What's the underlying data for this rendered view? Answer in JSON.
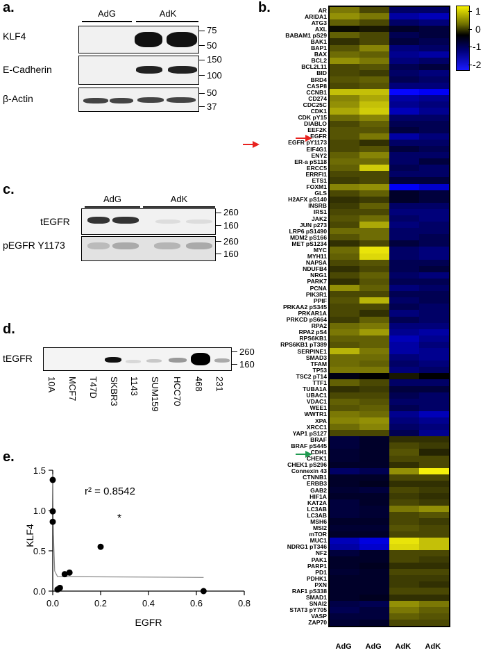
{
  "panels": {
    "a": {
      "label": "a.",
      "groups": [
        "AdG",
        "AdK"
      ],
      "rows": [
        {
          "name": "KLF4",
          "mw": [
            "75",
            "50"
          ]
        },
        {
          "name": "E-Cadherin",
          "mw": [
            "150",
            "100"
          ]
        },
        {
          "name": "β-Actin",
          "mw": [
            "50",
            "37"
          ]
        }
      ]
    },
    "b": {
      "label": "b.",
      "colorbar": [
        "1",
        "0",
        "-1",
        "-2"
      ],
      "columns": [
        "AdG",
        "AdG",
        "AdK",
        "AdK"
      ],
      "genes": [
        "AR",
        "ARIDA1",
        "ATG3",
        "AXL",
        "BABAM1 pS29",
        "BAK1",
        "BAP1",
        "BAX",
        "BCL2",
        "BCL2L11",
        "BID",
        "BRD4",
        "CASP8",
        "CCNB1",
        "CD274",
        "CDC25C",
        "CDK1",
        "CDK pY15",
        "DIABLO",
        "EEF2K",
        "EGFR",
        "EGFR pY1173",
        "EIF4G1",
        "ENY2",
        "ER-a pS118",
        "ERCC5",
        "ERRFI1",
        "ETS1",
        "FOXM1",
        "GLS",
        "H2AFX pS140",
        "INSRB",
        "IRS1",
        "JAK2",
        "JUN p273",
        "LRP6 pS1490",
        "MDM2 pS166",
        "MET pS1234",
        "MYC",
        "MYH11",
        "NAPSA",
        "NDUFB4",
        "NRG1",
        "PARK7",
        "PCNA",
        "PIK3R1",
        "PPIF",
        "PRKAA2 pS345",
        "PRKAR1A",
        "PRKCD pS664",
        "RPA2",
        "RPA2 pS4",
        "RPS6KB1",
        "RPS6KB1 pT389",
        "SERPINE1",
        "SMAD3",
        "TFAM",
        "TP53",
        "TSC2 pT14",
        "TTF1",
        "TUBA1A",
        "UBAC1",
        "VDAC1",
        "WEE1",
        "WWTR1",
        "XPA",
        "XRCC1",
        "YAP1 pS127",
        "BRAF",
        "BRAF pS445",
        "CDH1",
        "CHEK1",
        "CHEK1 pS296",
        "Connexin 43",
        "CTNNB1",
        "ERBB3",
        "GAB2",
        "HIF1A",
        "KAT2A",
        "LC3AB",
        "LC3AB",
        "MSH6",
        "MSI2",
        "mTOR",
        "MUC1",
        "NDRG1 pT346",
        "NF2",
        "PAK1",
        "PARP1",
        "PD1",
        "PDHK1",
        "PXN",
        "RAF1 pS338",
        "SMAD1",
        "SNAI2",
        "STAT3 pY705",
        "VASP",
        "ZAP70"
      ],
      "values": [
        [
          0.5,
          0.3,
          -0.5,
          -0.5
        ],
        [
          0.6,
          0.5,
          -0.8,
          -0.9
        ],
        [
          0.4,
          0.3,
          -0.5,
          -0.6
        ],
        [
          0.05,
          0.1,
          -0.2,
          -0.3
        ],
        [
          0.4,
          0.3,
          -0.4,
          -0.3
        ],
        [
          0.2,
          0.3,
          -0.3,
          -0.4
        ],
        [
          0.35,
          0.55,
          -0.6,
          -0.5
        ],
        [
          0.45,
          0.4,
          -0.7,
          -0.8
        ],
        [
          0.6,
          0.5,
          -0.6,
          -0.5
        ],
        [
          0.3,
          0.35,
          -0.4,
          -0.3
        ],
        [
          0.3,
          0.25,
          -0.5,
          -0.6
        ],
        [
          0.35,
          0.4,
          -0.4,
          -0.5
        ],
        [
          0.3,
          0.35,
          -0.6,
          -0.6
        ],
        [
          0.8,
          0.8,
          -1.6,
          -1.2
        ],
        [
          0.55,
          0.7,
          -0.8,
          -0.7
        ],
        [
          0.6,
          0.8,
          -0.7,
          -0.6
        ],
        [
          0.7,
          0.85,
          -0.9,
          -0.7
        ],
        [
          0.45,
          0.55,
          -0.5,
          -0.5
        ],
        [
          0.3,
          0.4,
          -0.4,
          -0.4
        ],
        [
          0.35,
          0.35,
          -0.3,
          -0.4
        ],
        [
          0.35,
          0.5,
          -0.8,
          -0.6
        ],
        [
          0.3,
          0.2,
          -0.5,
          -0.5
        ],
        [
          0.3,
          0.35,
          -0.3,
          -0.4
        ],
        [
          0.4,
          0.55,
          -0.5,
          -0.5
        ],
        [
          0.45,
          0.45,
          -0.5,
          -0.3
        ],
        [
          0.4,
          0.85,
          -0.4,
          -0.5
        ],
        [
          0.3,
          0.3,
          -0.5,
          -0.5
        ],
        [
          0.25,
          0.3,
          -0.3,
          -0.3
        ],
        [
          0.55,
          0.6,
          -1.2,
          -1.0
        ],
        [
          0.3,
          0.4,
          -0.2,
          -0.3
        ],
        [
          0.2,
          0.25,
          -0.2,
          -0.3
        ],
        [
          0.25,
          0.4,
          -0.5,
          -0.5
        ],
        [
          0.3,
          0.3,
          -0.6,
          -0.6
        ],
        [
          0.35,
          0.45,
          -0.5,
          -0.6
        ],
        [
          0.3,
          0.7,
          -0.6,
          -0.5
        ],
        [
          0.45,
          0.45,
          -0.5,
          -0.5
        ],
        [
          0.35,
          0.45,
          -0.5,
          -0.4
        ],
        [
          0.2,
          0.3,
          -0.3,
          -0.4
        ],
        [
          0.45,
          0.95,
          -0.5,
          -0.6
        ],
        [
          0.4,
          0.9,
          -0.5,
          -0.6
        ],
        [
          0.3,
          0.35,
          -0.4,
          -0.4
        ],
        [
          0.2,
          0.3,
          -0.4,
          -0.3
        ],
        [
          0.3,
          0.4,
          -0.5,
          -0.6
        ],
        [
          0.2,
          0.35,
          -0.4,
          -0.4
        ],
        [
          0.6,
          0.4,
          -0.6,
          -0.5
        ],
        [
          0.3,
          0.3,
          -0.4,
          -0.4
        ],
        [
          0.35,
          0.75,
          -0.5,
          -0.4
        ],
        [
          0.3,
          0.3,
          -0.4,
          -0.5
        ],
        [
          0.3,
          0.2,
          -0.6,
          -0.5
        ],
        [
          0.25,
          0.4,
          -0.4,
          -0.5
        ],
        [
          0.45,
          0.5,
          -0.6,
          -0.6
        ],
        [
          0.5,
          0.65,
          -0.7,
          -0.8
        ],
        [
          0.4,
          0.4,
          -0.9,
          -0.7
        ],
        [
          0.35,
          0.4,
          -0.8,
          -0.6
        ],
        [
          0.75,
          0.5,
          -0.8,
          -0.7
        ],
        [
          0.45,
          0.45,
          -0.6,
          -0.7
        ],
        [
          0.45,
          0.4,
          -0.5,
          -0.6
        ],
        [
          0.5,
          0.5,
          -0.6,
          -0.5
        ],
        [
          -0.1,
          0.0,
          0.1,
          0.0
        ],
        [
          0.4,
          0.3,
          -0.5,
          -0.5
        ],
        [
          0.2,
          0.25,
          -0.3,
          -0.3
        ],
        [
          0.3,
          0.3,
          -0.4,
          -0.5
        ],
        [
          0.4,
          0.35,
          -0.5,
          -0.5
        ],
        [
          0.35,
          0.4,
          -0.4,
          -0.5
        ],
        [
          0.5,
          0.45,
          -0.7,
          -0.9
        ],
        [
          0.55,
          0.6,
          -0.6,
          -0.7
        ],
        [
          0.45,
          0.55,
          -0.5,
          -0.6
        ],
        [
          0.3,
          0.3,
          -0.4,
          -0.7
        ],
        [
          -0.3,
          -0.2,
          0.2,
          0.2
        ],
        [
          -0.3,
          -0.2,
          0.3,
          0.25
        ],
        [
          -0.25,
          -0.2,
          0.35,
          0.15
        ],
        [
          -0.25,
          -0.2,
          0.3,
          0.3
        ],
        [
          -0.2,
          -0.2,
          0.2,
          0.3
        ],
        [
          -0.5,
          -0.4,
          0.6,
          1.0
        ],
        [
          -0.2,
          -0.2,
          0.3,
          0.3
        ],
        [
          -0.2,
          -0.15,
          0.2,
          0.2
        ],
        [
          -0.25,
          -0.3,
          0.3,
          0.25
        ],
        [
          -0.2,
          -0.2,
          0.25,
          0.2
        ],
        [
          -0.3,
          -0.2,
          0.3,
          0.25
        ],
        [
          -0.3,
          -0.25,
          0.5,
          0.6
        ],
        [
          -0.3,
          -0.25,
          0.3,
          0.35
        ],
        [
          -0.2,
          -0.2,
          0.3,
          0.25
        ],
        [
          -0.25,
          -0.25,
          0.35,
          0.3
        ],
        [
          -0.2,
          -0.2,
          0.3,
          0.3
        ],
        [
          -0.9,
          -1.1,
          0.95,
          0.8
        ],
        [
          -0.8,
          -1.0,
          0.9,
          0.8
        ],
        [
          -0.3,
          -0.2,
          0.3,
          0.3
        ],
        [
          -0.2,
          -0.2,
          0.3,
          0.25
        ],
        [
          -0.2,
          -0.15,
          0.2,
          0.2
        ],
        [
          -0.25,
          -0.2,
          0.3,
          0.3
        ],
        [
          -0.2,
          -0.2,
          0.25,
          0.25
        ],
        [
          -0.2,
          -0.2,
          0.25,
          0.2
        ],
        [
          -0.2,
          -0.2,
          0.3,
          0.3
        ],
        [
          -0.2,
          -0.15,
          0.2,
          0.2
        ],
        [
          -0.35,
          -0.4,
          0.6,
          0.5
        ],
        [
          -0.4,
          -0.3,
          0.5,
          0.4
        ],
        [
          -0.3,
          -0.3,
          0.4,
          0.35
        ],
        [
          -0.25,
          -0.2,
          0.3,
          0.3
        ]
      ],
      "arrows": [
        {
          "gene": "EGFR",
          "color": "#e8221f"
        },
        {
          "gene": "EGFR pY1173",
          "color": "#e8221f"
        },
        {
          "gene": "CDH1",
          "color": "#1f9a50"
        }
      ]
    },
    "c": {
      "label": "c.",
      "groups": [
        "AdG",
        "AdK"
      ],
      "rows": [
        {
          "name": "tEGFR",
          "mw": [
            "260",
            "160"
          ]
        },
        {
          "name": "pEGFR Y1173",
          "mw": [
            "260",
            "160"
          ]
        }
      ]
    },
    "d": {
      "label": "d.",
      "row": {
        "name": "tEGFR",
        "mw": [
          "260",
          "160"
        ]
      },
      "lanes": [
        "10A",
        "MCF7",
        "T47D",
        "SKBR3",
        "1143",
        "SUM159",
        "HCC70",
        "468",
        "231"
      ]
    },
    "e": {
      "label": "e.",
      "annotation": "r² = 0.8542",
      "star": "*"
    }
  },
  "chart_data": {
    "type": "scatter",
    "title": "",
    "xlabel": "EGFR",
    "ylabel": "KLF4",
    "xlim": [
      0,
      0.8
    ],
    "ylim": [
      0,
      1.5
    ],
    "xticks": [
      "0.0",
      "0.2",
      "0.4",
      "0.6",
      "0.8"
    ],
    "yticks": [
      "0.0",
      "0.5",
      "1.0",
      "1.5"
    ],
    "points": [
      {
        "x": 0.0,
        "y": 1.38
      },
      {
        "x": 0.0,
        "y": 0.99
      },
      {
        "x": 0.0,
        "y": 0.86
      },
      {
        "x": 0.02,
        "y": 0.02
      },
      {
        "x": 0.03,
        "y": 0.04
      },
      {
        "x": 0.05,
        "y": 0.21
      },
      {
        "x": 0.07,
        "y": 0.23
      },
      {
        "x": 0.2,
        "y": 0.55
      },
      {
        "x": 0.63,
        "y": 0.0
      }
    ],
    "fit": [
      {
        "x": 0.0,
        "y": 1.45
      },
      {
        "x": 0.003,
        "y": 0.7
      },
      {
        "x": 0.008,
        "y": 0.25
      },
      {
        "x": 0.02,
        "y": 0.18
      },
      {
        "x": 0.63,
        "y": 0.17
      }
    ],
    "grid": false
  }
}
